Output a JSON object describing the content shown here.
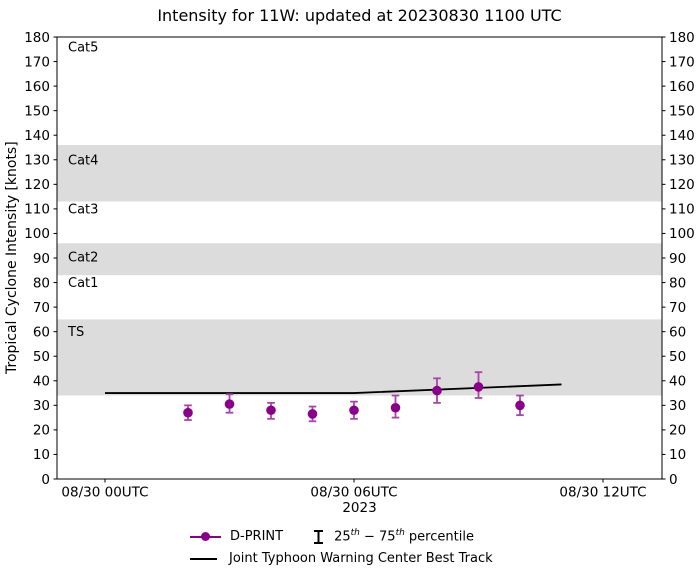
{
  "chart_data": {
    "type": "line",
    "title": "Intensity for 11W: updated at 20230830 1100 UTC",
    "ylabel": "Tropical Cyclone Intensity [knots]",
    "xlabel_year": "2023",
    "ylim": [
      0,
      180
    ],
    "xlim_hours": [
      -1.16,
      13.43
    ],
    "x_axis_note": "hours relative to 2023-08-30 00:00 UTC",
    "grid": false,
    "yticks": [
      0,
      10,
      20,
      30,
      40,
      50,
      60,
      70,
      80,
      90,
      100,
      110,
      120,
      130,
      140,
      150,
      160,
      170,
      180
    ],
    "xticks": [
      {
        "hour": 0,
        "label": "08/30 00UTC"
      },
      {
        "hour": 6,
        "label": "08/30 06UTC"
      },
      {
        "hour": 12,
        "label": "08/30 12UTC"
      }
    ],
    "background_bands": {
      "color": "#dcdcdc",
      "ranges_knots": [
        [
          34,
          65
        ],
        [
          83,
          96
        ],
        [
          113,
          136
        ]
      ]
    },
    "category_labels": [
      {
        "text": "Cat5",
        "y_knots": 176
      },
      {
        "text": "Cat4",
        "y_knots": 130
      },
      {
        "text": "Cat3",
        "y_knots": 110
      },
      {
        "text": "Cat2",
        "y_knots": 90.5
      },
      {
        "text": "Cat1",
        "y_knots": 80
      },
      {
        "text": "TS",
        "y_knots": 60
      }
    ],
    "series": [
      {
        "name": "D-PRINT",
        "type": "scatter_errorbar",
        "color": "#8b008b",
        "errorbar_color": "#a845a8",
        "points": [
          {
            "hour": 2,
            "value": 27,
            "p25": 24,
            "p75": 30
          },
          {
            "hour": 3,
            "value": 30.5,
            "p25": 27,
            "p75": 34.5
          },
          {
            "hour": 4,
            "value": 28,
            "p25": 24.5,
            "p75": 31
          },
          {
            "hour": 5,
            "value": 26.5,
            "p25": 23.5,
            "p75": 29.5
          },
          {
            "hour": 6,
            "value": 28,
            "p25": 24.5,
            "p75": 31.5
          },
          {
            "hour": 7,
            "value": 29,
            "p25": 25,
            "p75": 34
          },
          {
            "hour": 8,
            "value": 36,
            "p25": 31,
            "p75": 41
          },
          {
            "hour": 9,
            "value": 37.5,
            "p25": 33,
            "p75": 43.5
          },
          {
            "hour": 10,
            "value": 30,
            "p25": 26,
            "p75": 34
          }
        ]
      },
      {
        "name": "Joint Typhoon Warning Center Best Track",
        "type": "line",
        "color": "#000000",
        "points": [
          {
            "hour": 0,
            "value": 35
          },
          {
            "hour": 6,
            "value": 35
          },
          {
            "hour": 11,
            "value": 38.5
          }
        ]
      }
    ],
    "legend_position": "below-axes"
  },
  "legend": {
    "dprint_label": "D-PRINT",
    "percentile_parts": {
      "p1": "25",
      "sup1": "th",
      "p2": " − 75",
      "sup2": "th",
      "p3": " percentile"
    },
    "besttrack_label": "Joint Typhoon Warning Center Best Track"
  },
  "colors": {
    "background": "#ffffff",
    "band": "#dcdcdc",
    "marker": "#8b008b",
    "errorbar": "#a845a8",
    "best_track": "#000000",
    "text": "#000000"
  }
}
